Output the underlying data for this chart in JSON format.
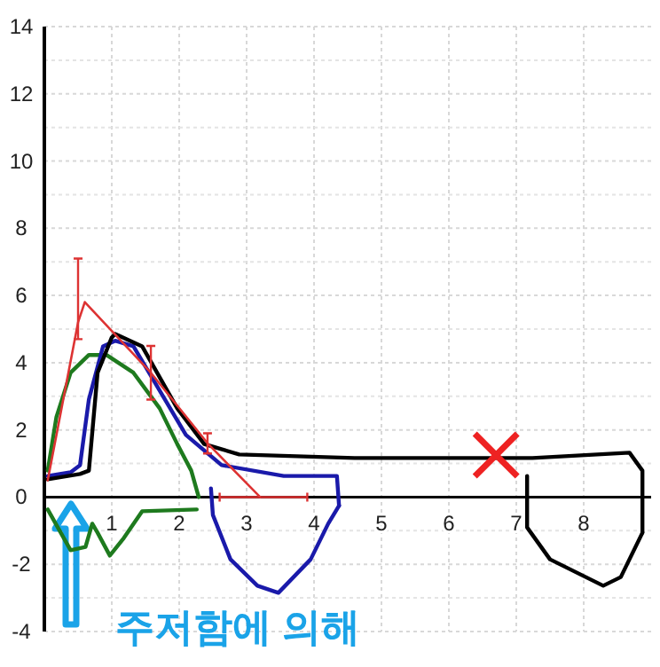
{
  "chart_data": {
    "type": "line",
    "xlim": [
      0,
      9
    ],
    "ylim": [
      -4,
      14
    ],
    "xticks": [
      {
        "value": 0,
        "label": null
      },
      1,
      2,
      3,
      4,
      5,
      6,
      7,
      8
    ],
    "yticks": [
      -4,
      -2,
      0,
      2,
      4,
      6,
      8,
      10,
      12,
      14
    ],
    "grid": true,
    "marker": "none",
    "line_style": "solid",
    "series": [
      {
        "color": "#1e7a1e",
        "x": [
          0.05,
          0.18,
          0.39,
          0.66,
          0.92,
          1.32,
          1.71,
          1.97,
          2.18,
          2.29
        ],
        "values": [
          0.79,
          2.38,
          3.7,
          4.23,
          4.23,
          3.7,
          2.64,
          1.58,
          0.79,
          0
        ]
      },
      {
        "color": "#1e7a1e",
        "x": [
          0.05,
          0.39,
          0.61,
          0.71,
          0.79,
          0.97,
          1.18,
          1.45,
          2.26
        ],
        "values": [
          -0.37,
          -1.58,
          -1.48,
          -0.79,
          -1.06,
          -1.74,
          -1.22,
          -0.42,
          -0.37
        ]
      },
      {
        "color": "#1a1aaa",
        "x": [
          0.05,
          0.39,
          0.53,
          0.66,
          0.87,
          1.05,
          1.32,
          1.71,
          2.1,
          2.63,
          3.55,
          4.34,
          4.37
        ],
        "values": [
          0.63,
          0.74,
          0.95,
          2.91,
          4.49,
          4.65,
          4.49,
          3.17,
          1.85,
          0.95,
          0.63,
          0.63,
          -0.26
        ]
      },
      {
        "color": "#1a1aaa",
        "x": [
          2.47,
          2.5,
          2.76,
          3.16,
          3.47,
          3.95,
          4.21,
          4.37
        ],
        "values": [
          0.26,
          -0.53,
          -1.85,
          -2.64,
          -2.85,
          -1.85,
          -0.79,
          -0.26
        ]
      },
      {
        "color": "#000000",
        "x": [
          0.05,
          0.53,
          0.66,
          0.79,
          1.0,
          1.05,
          1.45,
          1.97,
          2.37,
          2.89,
          4.6,
          7.24,
          8.68,
          8.87,
          8.87
        ],
        "values": [
          0.53,
          0.69,
          0.79,
          3.7,
          4.75,
          4.86,
          4.49,
          2.64,
          1.58,
          1.27,
          1.16,
          1.16,
          1.32,
          0.79,
          -1.06
        ]
      },
      {
        "color": "#000000",
        "x": [
          7.16,
          7.16,
          7.5,
          8.29,
          8.55,
          8.87
        ],
        "values": [
          0.63,
          -0.9,
          -1.85,
          -2.64,
          -2.38,
          -1.06
        ]
      },
      {
        "color": "#dd3333",
        "x": [
          0.05,
          0.5,
          0.6,
          1.58,
          2.42,
          3.2
        ],
        "values": [
          0.5,
          5.2,
          5.8,
          3.7,
          1.6,
          0
        ],
        "errors": [
          null,
          [
            4.7,
            7.1
          ],
          null,
          [
            2.9,
            4.5
          ],
          [
            1.3,
            1.9
          ],
          null
        ],
        "xerrors": [
          null,
          null,
          null,
          null,
          null,
          [
            2.6,
            3.9
          ]
        ]
      }
    ],
    "annotations": [
      "주저함에 의해"
    ]
  }
}
